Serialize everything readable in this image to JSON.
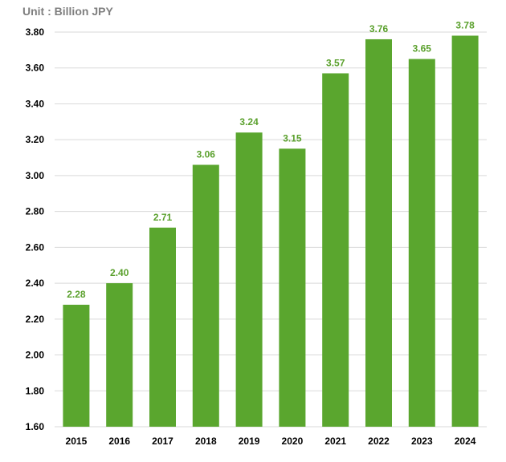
{
  "chart_data": {
    "type": "bar",
    "title": "",
    "unit_label": "Unit : Billion JPY",
    "xlabel": "",
    "ylabel": "",
    "categories": [
      "2015",
      "2016",
      "2017",
      "2018",
      "2019",
      "2020",
      "2021",
      "2022",
      "2023",
      "2024"
    ],
    "values": [
      2.28,
      2.4,
      2.71,
      3.06,
      3.24,
      3.15,
      3.57,
      3.76,
      3.65,
      3.78
    ],
    "ylim": [
      1.6,
      3.8
    ],
    "yticks": [
      "1.60",
      "1.80",
      "2.00",
      "2.20",
      "2.40",
      "2.60",
      "2.80",
      "3.00",
      "3.20",
      "3.40",
      "3.60",
      "3.80"
    ],
    "grid": true,
    "bar_color": "#5aa62e",
    "label_color": "#5aa02c"
  }
}
